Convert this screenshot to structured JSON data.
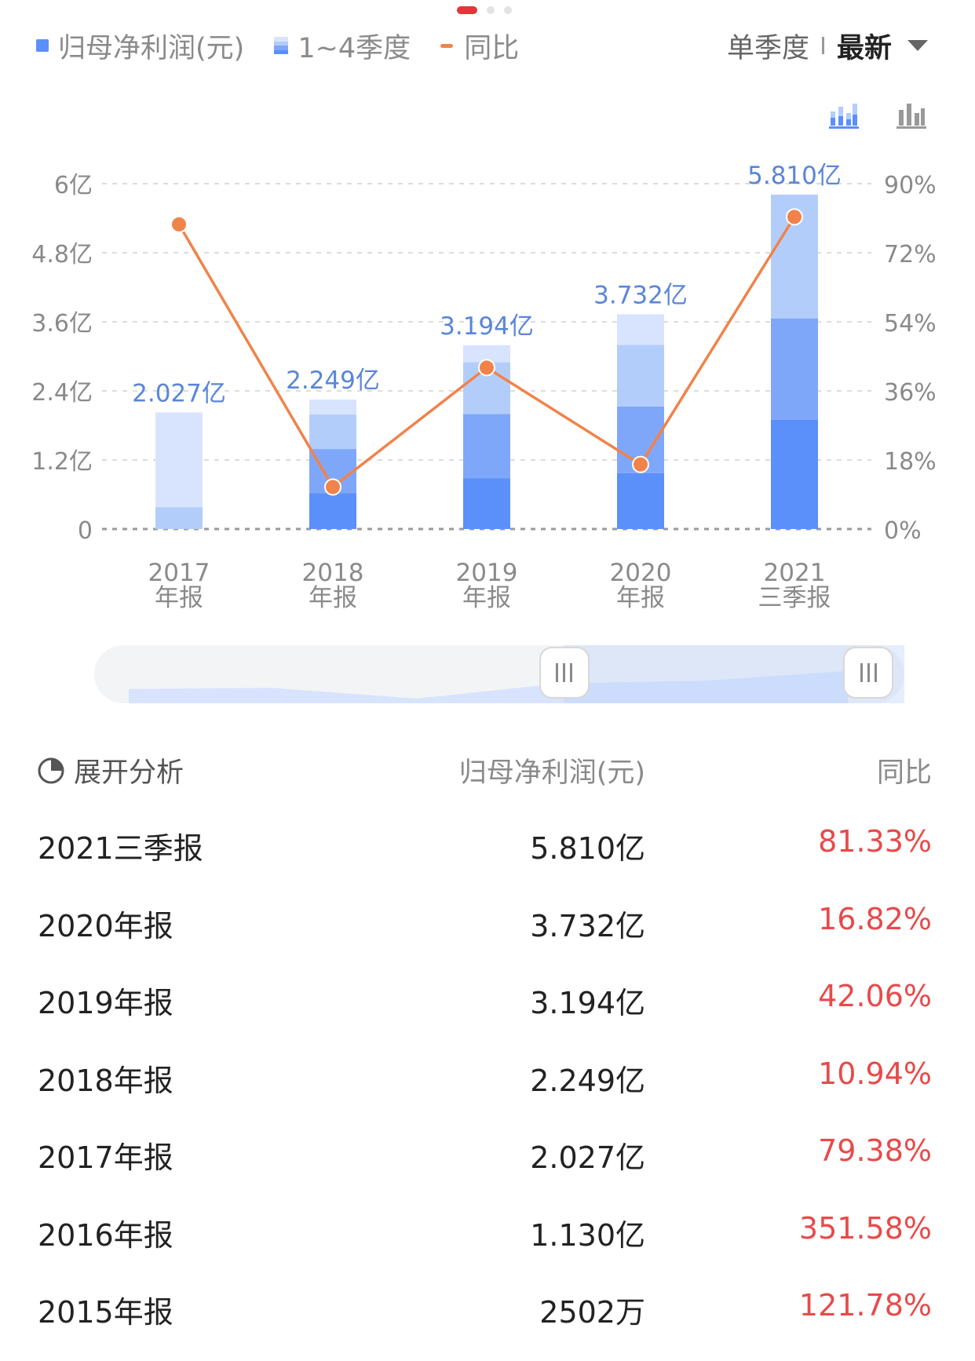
{
  "legend": {
    "net_profit": "归母净利润(元)",
    "quarters": "1~4季度",
    "yoy": "同比"
  },
  "mode": {
    "single_quarter": "单季度",
    "latest": "最新"
  },
  "icons": {
    "chart_type_a": "stacked-bar-chart-icon",
    "chart_type_b": "bar-chart-icon"
  },
  "colors": {
    "q1": "#5b8ff9",
    "q2": "#7fa7f9",
    "q3": "#b3cdfb",
    "q4": "#d8e4fd",
    "line": "#f0834a",
    "label": "#5a86d8",
    "negative_red": "#e84a4a",
    "active_dot": "#e8333a"
  },
  "chart_data": {
    "type": "bar",
    "categories": [
      "2017\n年报",
      "2018\n年报",
      "2019\n年报",
      "2020\n年报",
      "2021\n三季报"
    ],
    "series": [
      {
        "name": "归母净利润(元)",
        "values": [
          2.027,
          2.249,
          3.194,
          3.732,
          5.81
        ]
      },
      {
        "name": "同比",
        "values": [
          79.38,
          10.94,
          42.06,
          16.82,
          81.33
        ]
      }
    ],
    "stack_segments": [
      [
        0.38,
        1.647,
        0,
        0
      ],
      [
        0.62,
        0.77,
        0.6,
        0.259
      ],
      [
        0.88,
        1.12,
        0.9,
        0.294
      ],
      [
        0.97,
        1.16,
        1.07,
        0.532
      ],
      [
        1.9,
        1.76,
        2.15,
        0
      ]
    ],
    "bar_labels": [
      "2.027亿",
      "2.249亿",
      "3.194亿",
      "3.732亿",
      "5.810亿"
    ],
    "y_left_ticks": [
      "0",
      "1.2亿",
      "2.4亿",
      "3.6亿",
      "4.8亿",
      "6亿"
    ],
    "y_right_ticks": [
      "0%",
      "18%",
      "36%",
      "54%",
      "72%",
      "90%"
    ],
    "ylim_left": [
      0,
      6
    ],
    "ylim_right": [
      0,
      90
    ],
    "grid": true,
    "legend_position": "top-left"
  },
  "range_selector": {
    "overview": [
      2.027,
      2.249,
      0,
      3.194,
      3.732,
      5.81
    ],
    "selection_start": 0.58,
    "selection_end": 1.0
  },
  "table": {
    "expand_label": "展开分析",
    "headers": [
      "归母净利润(元)",
      "同比"
    ],
    "rows": [
      {
        "period": "2021三季报",
        "value": "5.810亿",
        "yoy": "81.33%"
      },
      {
        "period": "2020年报",
        "value": "3.732亿",
        "yoy": "16.82%"
      },
      {
        "period": "2019年报",
        "value": "3.194亿",
        "yoy": "42.06%"
      },
      {
        "period": "2018年报",
        "value": "2.249亿",
        "yoy": "10.94%"
      },
      {
        "period": "2017年报",
        "value": "2.027亿",
        "yoy": "79.38%"
      },
      {
        "period": "2016年报",
        "value": "1.130亿",
        "yoy": "351.58%"
      },
      {
        "period": "2015年报",
        "value": "2502万",
        "yoy": "121.78%"
      }
    ]
  }
}
